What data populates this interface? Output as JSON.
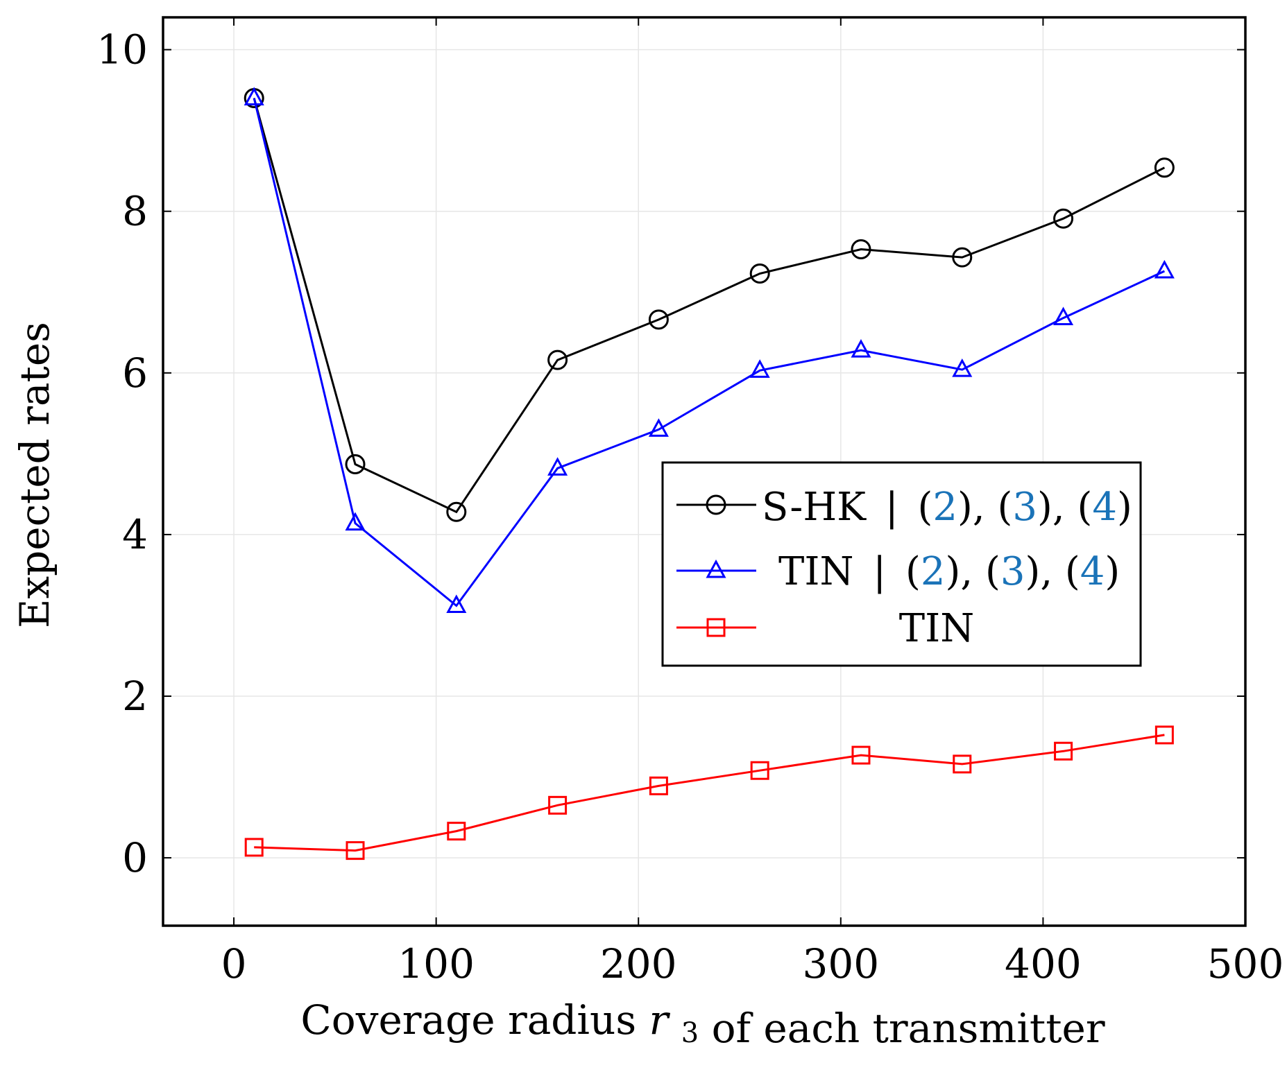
{
  "chart_data": {
    "type": "line",
    "title": "",
    "xlabel": "Coverage radius",
    "xlabel_var": "r",
    "xlabel_sub": "3",
    "xlabel_suffix": "of each transmitter",
    "ylabel": "Expected rates",
    "xlim": [
      -35,
      500
    ],
    "ylim": [
      -0.84,
      10.4
    ],
    "xticks": [
      0,
      100,
      200,
      300,
      400,
      500
    ],
    "yticks": [
      0,
      2,
      4,
      6,
      8,
      10
    ],
    "grid": true,
    "legend_position": "center-right",
    "x": [
      10,
      60,
      110,
      160,
      210,
      260,
      310,
      360,
      410,
      460
    ],
    "series": [
      {
        "name": "S-HK | (2), (3), (4)",
        "label_main": "S-HK",
        "marker": "circle",
        "color": "#000000",
        "values": [
          9.4,
          4.87,
          4.28,
          6.16,
          6.66,
          7.23,
          7.53,
          7.43,
          7.91,
          8.54
        ]
      },
      {
        "name": "TIN | (2), (3), (4)",
        "label_main": "TIN",
        "marker": "triangle",
        "color": "#0000ff",
        "values": [
          9.4,
          4.14,
          3.12,
          4.82,
          5.3,
          6.03,
          6.28,
          6.04,
          6.68,
          7.26
        ]
      },
      {
        "name": "TIN",
        "label_main": "TIN",
        "marker": "square",
        "color": "#ff0000",
        "values": [
          0.13,
          0.09,
          0.33,
          0.65,
          0.89,
          1.08,
          1.27,
          1.16,
          1.32,
          1.52
        ]
      }
    ],
    "legend_refs": {
      "open": "(",
      "close": ")",
      "sep": ", ",
      "bar": "|",
      "items": [
        "2",
        "3",
        "4"
      ]
    }
  }
}
